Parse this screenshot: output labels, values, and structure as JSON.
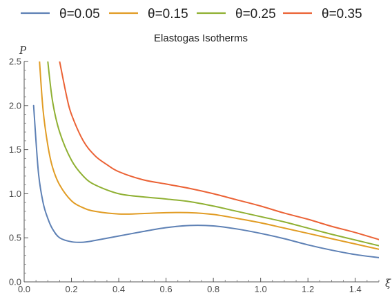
{
  "chart_data": {
    "type": "line",
    "title": "Elastogas Isotherms",
    "xlabel": "ξ",
    "ylabel": "P",
    "xlim": [
      0,
      1.5
    ],
    "ylim": [
      0,
      2.5
    ],
    "x_ticks": [
      "0.0",
      "0.2",
      "0.4",
      "0.6",
      "0.8",
      "1.0",
      "1.2",
      "1.4"
    ],
    "y_ticks": [
      "0.0",
      "0.5",
      "1.0",
      "1.5",
      "2.0",
      "2.5"
    ],
    "grid": false,
    "legend_position": "top",
    "series": [
      {
        "name": "θ=0.05",
        "color": "#5e81b5",
        "x": [
          0.04,
          0.06,
          0.08,
          0.1,
          0.12,
          0.15,
          0.2,
          0.25,
          0.3,
          0.4,
          0.5,
          0.6,
          0.7,
          0.8,
          0.9,
          1.0,
          1.1,
          1.2,
          1.3,
          1.4,
          1.5
        ],
        "y": [
          2.0,
          1.25,
          0.9,
          0.72,
          0.6,
          0.5,
          0.455,
          0.45,
          0.47,
          0.52,
          0.57,
          0.615,
          0.64,
          0.635,
          0.6,
          0.55,
          0.49,
          0.42,
          0.36,
          0.31,
          0.275
        ]
      },
      {
        "name": "θ=0.15",
        "color": "#e19c24",
        "x": [
          0.065,
          0.08,
          0.1,
          0.12,
          0.15,
          0.2,
          0.25,
          0.3,
          0.4,
          0.5,
          0.6,
          0.7,
          0.8,
          0.9,
          1.0,
          1.1,
          1.2,
          1.3,
          1.4,
          1.5
        ],
        "y": [
          2.5,
          1.95,
          1.55,
          1.3,
          1.1,
          0.92,
          0.84,
          0.8,
          0.77,
          0.775,
          0.785,
          0.785,
          0.765,
          0.72,
          0.67,
          0.61,
          0.55,
          0.49,
          0.43,
          0.37
        ]
      },
      {
        "name": "θ=0.25",
        "color": "#8fb032",
        "x": [
          0.1,
          0.12,
          0.15,
          0.2,
          0.25,
          0.3,
          0.4,
          0.5,
          0.6,
          0.7,
          0.8,
          0.9,
          1.0,
          1.1,
          1.2,
          1.3,
          1.4,
          1.5
        ],
        "y": [
          2.5,
          2.05,
          1.7,
          1.38,
          1.2,
          1.1,
          1.0,
          0.965,
          0.94,
          0.91,
          0.86,
          0.8,
          0.74,
          0.68,
          0.61,
          0.54,
          0.475,
          0.41
        ]
      },
      {
        "name": "θ=0.35",
        "color": "#eb6235",
        "x": [
          0.15,
          0.18,
          0.2,
          0.25,
          0.3,
          0.35,
          0.4,
          0.5,
          0.6,
          0.7,
          0.8,
          0.9,
          1.0,
          1.1,
          1.2,
          1.3,
          1.4,
          1.5
        ],
        "y": [
          2.5,
          2.1,
          1.9,
          1.6,
          1.43,
          1.33,
          1.25,
          1.16,
          1.11,
          1.06,
          1.0,
          0.93,
          0.86,
          0.78,
          0.71,
          0.63,
          0.56,
          0.48
        ]
      }
    ]
  }
}
